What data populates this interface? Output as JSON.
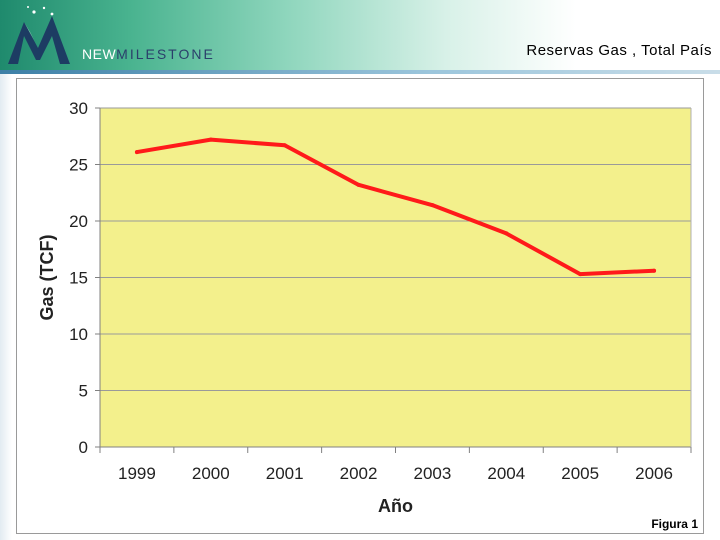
{
  "header": {
    "brand_prefix": "NEW",
    "brand_name": "MILESTONE",
    "title": "Reservas Gas , Total País"
  },
  "colors": {
    "plot_background": "#f3f08c",
    "series_line": "#ff1a1a",
    "gridline": "#9a9a9a"
  },
  "chart_data": {
    "type": "line",
    "xlabel": "Año",
    "ylabel": "Gas (TCF)",
    "categories": [
      "1999",
      "2000",
      "2001",
      "2002",
      "2003",
      "2004",
      "2005",
      "2006"
    ],
    "series": [
      {
        "values": [
          26.1,
          27.2,
          26.7,
          23.2,
          21.4,
          18.9,
          15.3,
          15.6
        ]
      }
    ],
    "ylim": [
      0,
      30
    ],
    "yticks": [
      0,
      5,
      10,
      15,
      20,
      25,
      30
    ],
    "grid": true,
    "legend": "none"
  },
  "footer": {
    "figure_label": "Figura 1"
  }
}
